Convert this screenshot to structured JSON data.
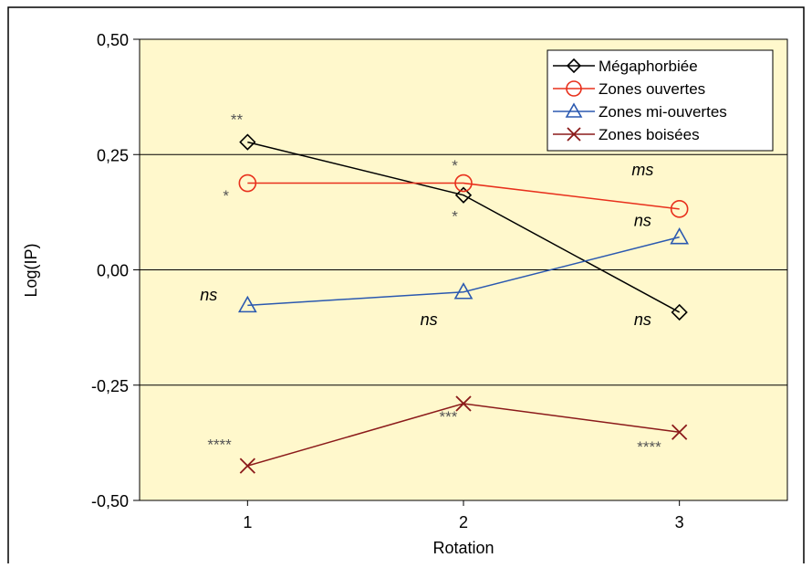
{
  "chart_data": {
    "type": "line",
    "title": "",
    "xlabel": "Rotation",
    "ylabel": "Log(IP)",
    "x": [
      1,
      2,
      3
    ],
    "xticks": [
      "1",
      "2",
      "3"
    ],
    "xlim": [
      0.5,
      3.5
    ],
    "ylim": [
      -0.5,
      0.5
    ],
    "yticks": [
      {
        "value": 0.5,
        "label": "0,50"
      },
      {
        "value": 0.25,
        "label": "0,25"
      },
      {
        "value": 0.0,
        "label": "0,00"
      },
      {
        "value": -0.25,
        "label": "-0,25"
      },
      {
        "value": -0.5,
        "label": "-0,50"
      }
    ],
    "grid": "horizontal",
    "legend_position": "top-right",
    "plot_background": "#FFF8CC",
    "series": [
      {
        "name": "Mégaphorbiée",
        "marker": "diamond",
        "color": "#000000",
        "values": [
          0.277,
          0.162,
          -0.092
        ]
      },
      {
        "name": "Zones ouvertes",
        "marker": "circle",
        "color": "#E8301C",
        "values": [
          0.188,
          0.188,
          0.132
        ]
      },
      {
        "name": "Zones mi-ouvertes",
        "marker": "triangle",
        "color": "#2B59B0",
        "values": [
          -0.077,
          -0.048,
          0.071
        ]
      },
      {
        "name": "Zones boisées",
        "marker": "x",
        "color": "#8B1A1A",
        "values": [
          -0.425,
          -0.29,
          -0.352
        ]
      }
    ],
    "annotations": [
      {
        "text": "**",
        "x": 0.95,
        "y": 0.315,
        "italic": false,
        "color": "#555555"
      },
      {
        "text": "*",
        "x": 0.9,
        "y": 0.15,
        "italic": false,
        "color": "#555555"
      },
      {
        "text": "*",
        "x": 1.96,
        "y": 0.215,
        "italic": false,
        "color": "#555555"
      },
      {
        "text": "*",
        "x": 1.96,
        "y": 0.105,
        "italic": false,
        "color": "#555555"
      },
      {
        "text": "ms",
        "x": 2.83,
        "y": 0.205,
        "italic": true,
        "color": "#000000"
      },
      {
        "text": "ns",
        "x": 2.83,
        "y": 0.095,
        "italic": true,
        "color": "#000000"
      },
      {
        "text": "ns",
        "x": 0.82,
        "y": -0.066,
        "italic": true,
        "color": "#000000"
      },
      {
        "text": "ns",
        "x": 1.84,
        "y": -0.12,
        "italic": true,
        "color": "#000000"
      },
      {
        "text": "ns",
        "x": 2.83,
        "y": -0.12,
        "italic": true,
        "color": "#000000"
      },
      {
        "text": "****",
        "x": 0.87,
        "y": -0.39,
        "italic": false,
        "color": "#555555"
      },
      {
        "text": "***",
        "x": 1.93,
        "y": -0.33,
        "italic": false,
        "color": "#555555"
      },
      {
        "text": "****",
        "x": 2.86,
        "y": -0.395,
        "italic": false,
        "color": "#555555"
      }
    ]
  }
}
